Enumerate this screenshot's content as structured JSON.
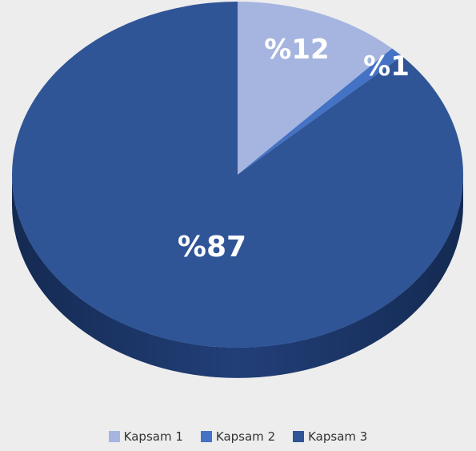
{
  "chart_data": {
    "type": "pie",
    "style": "3d",
    "categories": [
      "Kapsam 1",
      "Kapsam 2",
      "Kapsam 3"
    ],
    "values": [
      12,
      1,
      87
    ],
    "data_labels": [
      "%12",
      "%1",
      "%87"
    ],
    "colors": [
      "#a6b5df",
      "#4472c4",
      "#2f5597"
    ],
    "legend_position": "bottom"
  }
}
